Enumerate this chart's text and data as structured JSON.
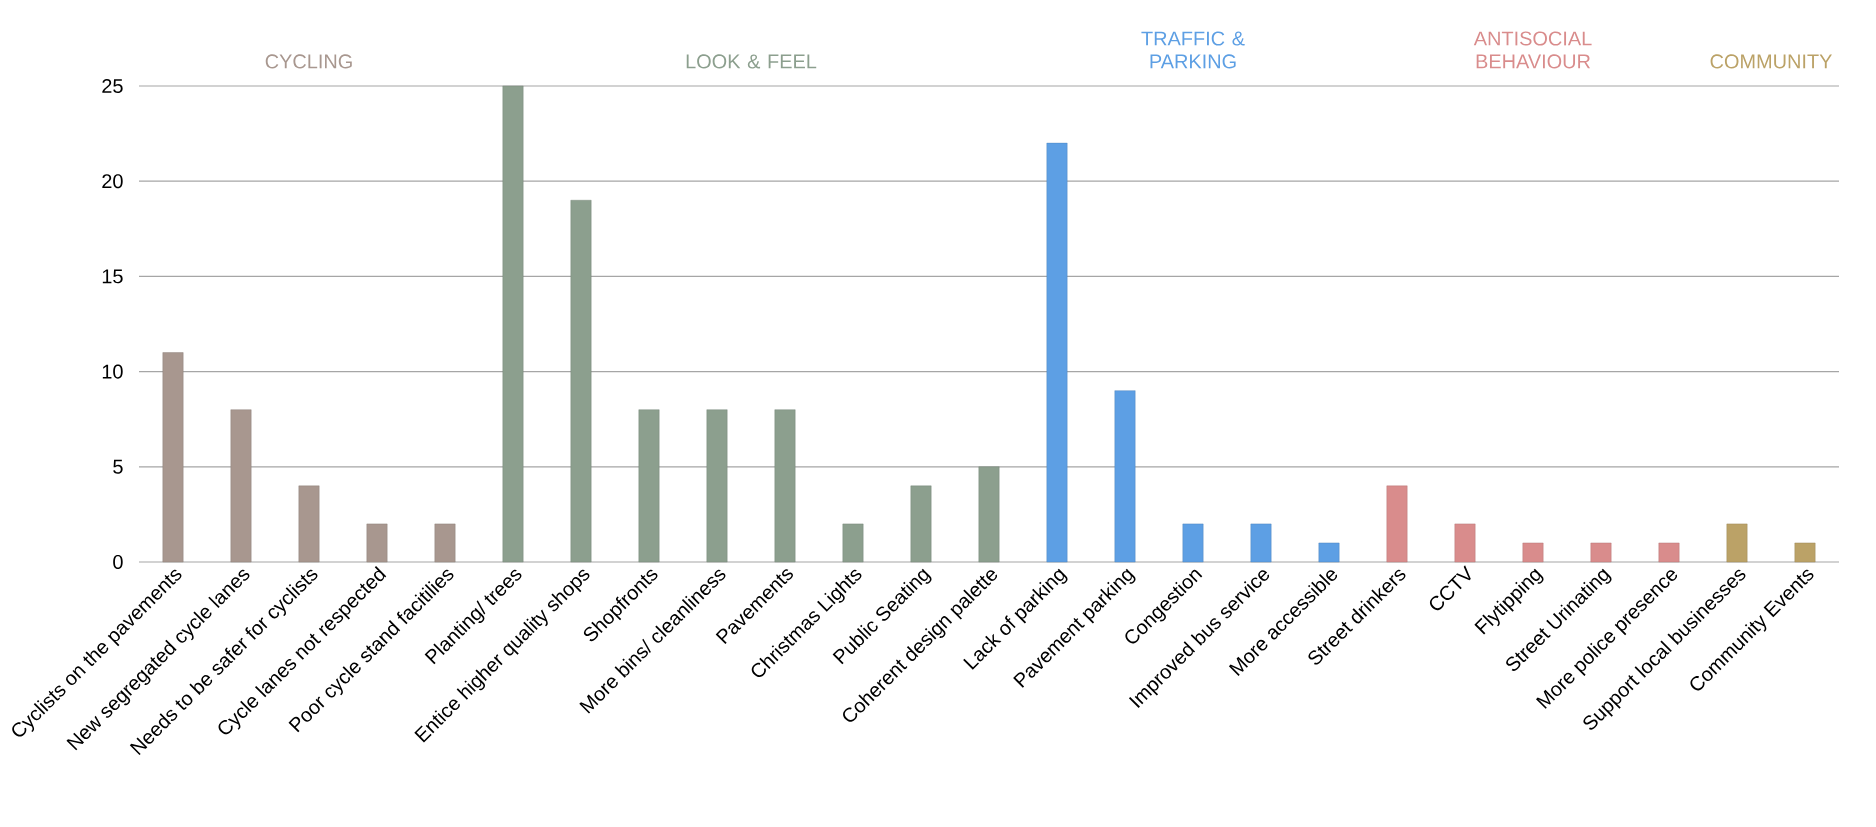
{
  "chart_data": {
    "type": "bar",
    "categories": [
      "Cyclists on the pavements",
      "New segregated cycle lanes",
      "Needs to be safer for cyclists",
      "Cycle lanes not respected",
      "Poor cycle stand facitilies",
      "Planting/ trees",
      "Entice higher quality shops",
      "Shopfronts",
      "More bins/ cleanliness",
      "Pavements",
      "Christmas Lights",
      "Public Seating",
      "Coherent design palette",
      "Lack of parking",
      "Pavement parking",
      "Congestion",
      "Improved bus service",
      "More accessible",
      "Street drinkers",
      "CCTV",
      "Flytipping",
      "Street Urinating",
      "More police presence",
      "Support local businesses",
      "Community Events"
    ],
    "series": [
      {
        "name": "CYCLING",
        "color": "#a8978f",
        "values": [
          11,
          8,
          4,
          2,
          2,
          null,
          null,
          null,
          null,
          null,
          null,
          null,
          null,
          null,
          null,
          null,
          null,
          null,
          null,
          null,
          null,
          null,
          null,
          null,
          null
        ]
      },
      {
        "name": "LOOK & FEEL",
        "color": "#8c9f8e",
        "values": [
          null,
          null,
          null,
          null,
          null,
          25,
          19,
          8,
          8,
          8,
          2,
          4,
          5,
          null,
          null,
          null,
          null,
          null,
          null,
          null,
          null,
          null,
          null,
          null,
          null
        ]
      },
      {
        "name": "TRAFFIC & PARKING",
        "color": "#5d9fe4",
        "values": [
          null,
          null,
          null,
          null,
          null,
          null,
          null,
          null,
          null,
          null,
          null,
          null,
          null,
          22,
          9,
          2,
          2,
          1,
          null,
          null,
          null,
          null,
          null,
          null,
          null
        ]
      },
      {
        "name": "ANTISOCIAL BEHAVIOUR",
        "color": "#d98c8c",
        "values": [
          null,
          null,
          null,
          null,
          null,
          null,
          null,
          null,
          null,
          null,
          null,
          null,
          null,
          null,
          null,
          null,
          null,
          null,
          4,
          2,
          1,
          1,
          1,
          null,
          null
        ]
      },
      {
        "name": "COMMUNITY",
        "color": "#bba267",
        "values": [
          null,
          null,
          null,
          null,
          null,
          null,
          null,
          null,
          null,
          null,
          null,
          null,
          null,
          null,
          null,
          null,
          null,
          null,
          null,
          null,
          null,
          null,
          null,
          2,
          1
        ]
      }
    ],
    "ylim": [
      0,
      25
    ],
    "yticks": [
      0,
      5,
      10,
      15,
      20,
      25
    ],
    "grid": "y"
  }
}
